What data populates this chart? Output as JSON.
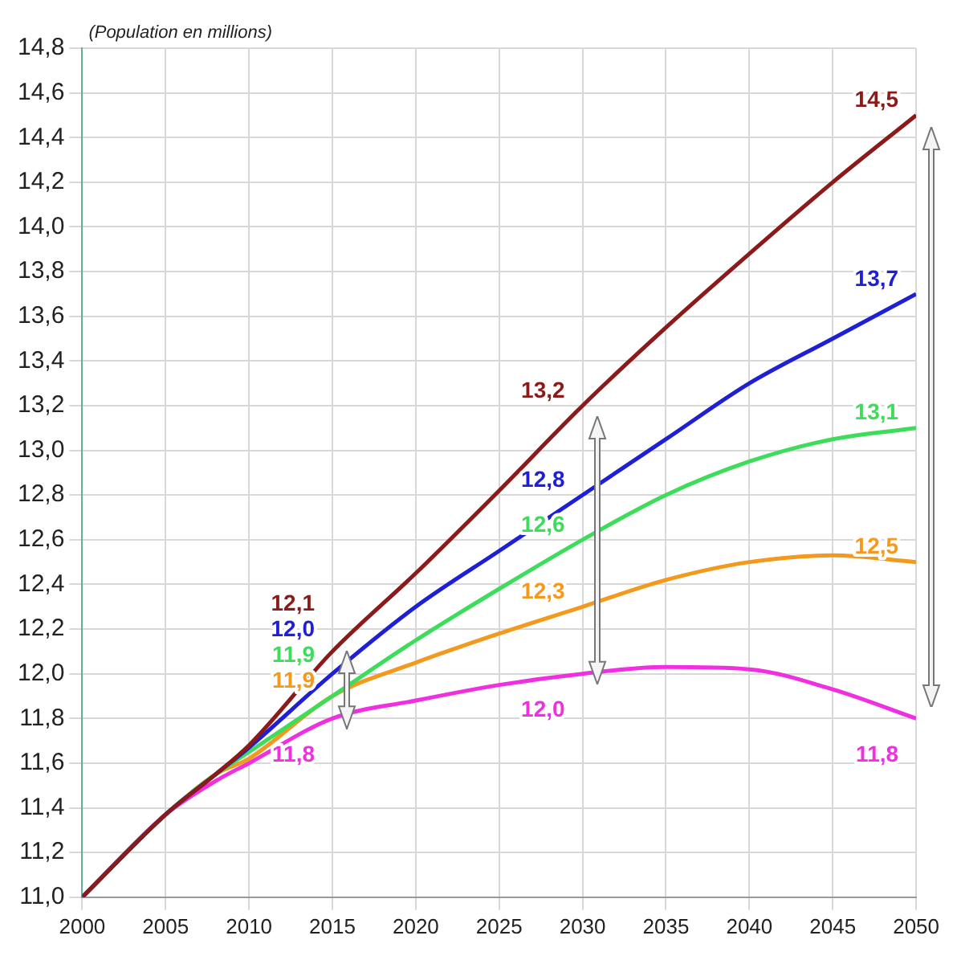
{
  "chart_data": {
    "type": "line",
    "ylabel": "(Population en millions)",
    "x": [
      2000,
      2005,
      2008,
      2010,
      2015,
      2020,
      2025,
      2030,
      2035,
      2040,
      2045,
      2050
    ],
    "series": [
      {
        "color": "#8b1a1a",
        "values": [
          11.0,
          11.37,
          11.55,
          11.68,
          12.1,
          12.45,
          12.82,
          13.2,
          13.55,
          13.88,
          14.2,
          14.5
        ],
        "value_labels": [
          null,
          null,
          null,
          null,
          "12,1",
          null,
          null,
          "13,2",
          null,
          null,
          null,
          "14,5"
        ]
      },
      {
        "color": "#1f1fd6",
        "values": [
          11.0,
          11.37,
          11.55,
          11.67,
          12.0,
          12.3,
          12.55,
          12.8,
          13.05,
          13.3,
          13.5,
          13.7
        ],
        "value_labels": [
          null,
          null,
          null,
          null,
          "12,0",
          null,
          null,
          "12,8",
          null,
          null,
          null,
          "13,7"
        ]
      },
      {
        "color": "#3ddc5a",
        "values": [
          11.0,
          11.37,
          11.55,
          11.65,
          11.9,
          12.15,
          12.38,
          12.6,
          12.8,
          12.95,
          13.05,
          13.1
        ],
        "value_labels": [
          null,
          null,
          null,
          null,
          "11,9",
          null,
          null,
          "12,6",
          null,
          null,
          null,
          "13,1"
        ]
      },
      {
        "color": "#f39a1e",
        "values": [
          11.0,
          11.37,
          11.55,
          11.62,
          11.9,
          12.05,
          12.18,
          12.3,
          12.42,
          12.5,
          12.53,
          12.5
        ],
        "value_labels": [
          null,
          null,
          null,
          null,
          "11,9",
          null,
          null,
          "12,3",
          null,
          null,
          null,
          "12,5"
        ]
      },
      {
        "color": "#f030e0",
        "values": [
          11.0,
          11.37,
          11.52,
          11.6,
          11.8,
          11.88,
          11.95,
          12.0,
          12.03,
          12.02,
          11.93,
          11.8
        ],
        "value_labels": [
          null,
          null,
          null,
          null,
          "11,8",
          null,
          null,
          "12,0",
          null,
          null,
          null,
          "11,8"
        ]
      }
    ],
    "xlim": [
      2000,
      2050
    ],
    "xticks": [
      2000,
      2005,
      2010,
      2015,
      2020,
      2025,
      2030,
      2035,
      2040,
      2045,
      2050
    ],
    "ylim": [
      11.0,
      14.8
    ],
    "yticks": [
      {
        "value": 11.0,
        "label": "11,0"
      },
      {
        "value": 11.2,
        "label": "11,2"
      },
      {
        "value": 11.4,
        "label": "11,4"
      },
      {
        "value": 11.6,
        "label": "11,6"
      },
      {
        "value": 11.8,
        "label": "11,8"
      },
      {
        "value": 12.0,
        "label": "12,0"
      },
      {
        "value": 12.2,
        "label": "12,2"
      },
      {
        "value": 12.4,
        "label": "12,4"
      },
      {
        "value": 12.6,
        "label": "12,6"
      },
      {
        "value": 12.8,
        "label": "12,8"
      },
      {
        "value": 13.0,
        "label": "13,0"
      },
      {
        "value": 13.2,
        "label": "13,2"
      },
      {
        "value": 13.4,
        "label": "13,4"
      },
      {
        "value": 13.6,
        "label": "13,6"
      },
      {
        "value": 13.8,
        "label": "13,8"
      },
      {
        "value": 14.0,
        "label": "14,0"
      },
      {
        "value": 14.2,
        "label": "14,2"
      },
      {
        "value": 14.4,
        "label": "14,4"
      },
      {
        "value": 14.6,
        "label": "14,6"
      },
      {
        "value": 14.8,
        "label": "14,8"
      }
    ],
    "grid": true,
    "marker": "none",
    "line_style": "solid"
  }
}
